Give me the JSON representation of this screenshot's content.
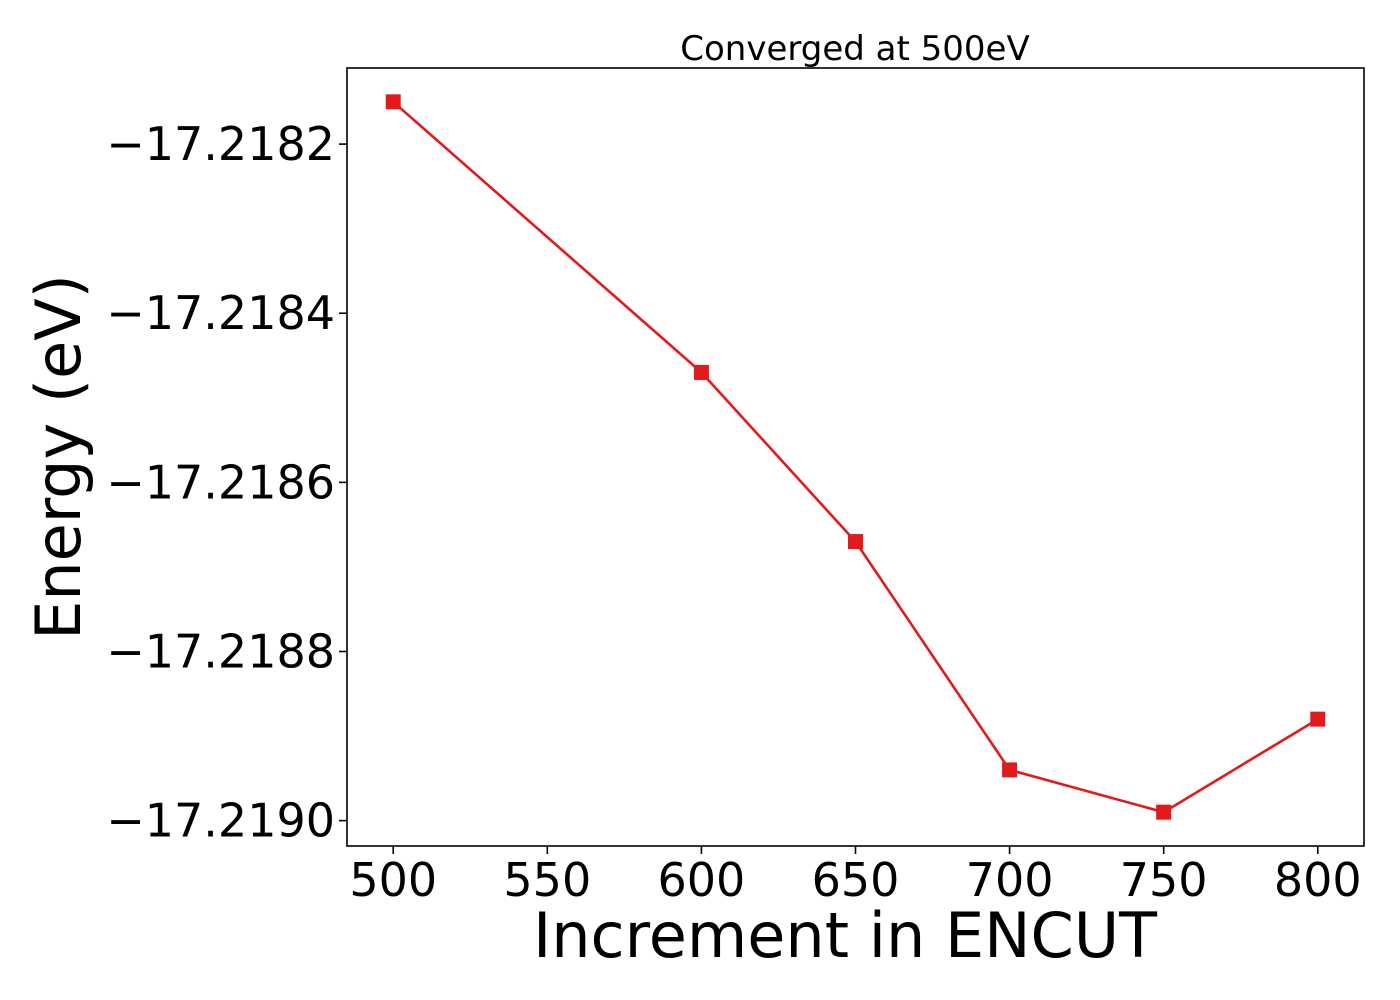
{
  "chart_data": {
    "type": "line",
    "title": "Converged at 500eV",
    "xlabel": "Increment in ENCUT",
    "ylabel": "Energy (eV)",
    "x": [
      500,
      600,
      650,
      700,
      750,
      800
    ],
    "series": [
      {
        "values": [
          -17.21815,
          -17.21847,
          -17.21867,
          -17.21894,
          -17.21899,
          -17.21888
        ],
        "color": "#e31a1c",
        "marker": "square"
      }
    ],
    "xlim": [
      485,
      815
    ],
    "ylim": [
      -17.21903,
      -17.21811
    ],
    "xticks": [
      500,
      550,
      600,
      650,
      700,
      750,
      800
    ],
    "xtick_labels": [
      "500",
      "550",
      "600",
      "650",
      "700",
      "750",
      "800"
    ],
    "yticks": [
      -17.219,
      -17.2188,
      -17.2186,
      -17.2184,
      -17.2182
    ],
    "ytick_labels": [
      "−17.2190",
      "−17.2188",
      "−17.2186",
      "−17.2184",
      "−17.2182"
    ],
    "grid": false,
    "legend": "none"
  }
}
